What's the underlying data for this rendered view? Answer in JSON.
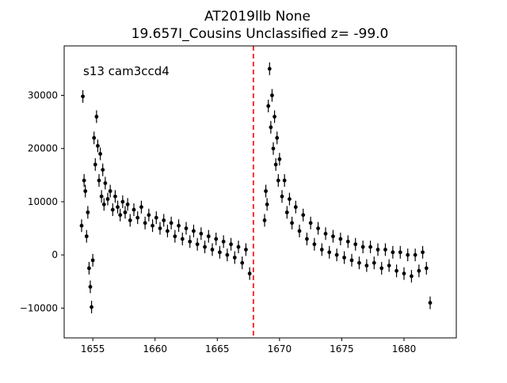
{
  "chart_data": {
    "type": "scatter",
    "title_line1": "AT2019llb  None",
    "title_line2": "19.657I_Cousins Unclassified z= -99.0",
    "annotation": "s13 cam3ccd4",
    "xlabel": "",
    "ylabel": "",
    "xlim": [
      1652.7,
      1684.2
    ],
    "ylim": [
      -15600,
      39300
    ],
    "x_ticks": [
      1655,
      1660,
      1665,
      1670,
      1675,
      1680
    ],
    "y_ticks": [
      -10000,
      0,
      10000,
      20000,
      30000
    ],
    "vline": {
      "x": 1667.9,
      "color": "#ff0000",
      "style": "dashed"
    },
    "marker_color": "#000000",
    "grid": false,
    "series": [
      {
        "points": [
          [
            1654.1,
            5500
          ],
          [
            1654.2,
            29800
          ],
          [
            1654.3,
            14000
          ],
          [
            1654.4,
            12000
          ],
          [
            1654.5,
            3500
          ],
          [
            1654.6,
            8000
          ],
          [
            1654.7,
            -2500
          ],
          [
            1654.8,
            -6000
          ],
          [
            1654.9,
            -9800
          ],
          [
            1655.0,
            -1000
          ],
          [
            1655.1,
            22000
          ],
          [
            1655.2,
            17000
          ],
          [
            1655.3,
            26000
          ],
          [
            1655.4,
            20500
          ],
          [
            1655.5,
            14000
          ],
          [
            1655.6,
            19000
          ],
          [
            1655.7,
            11000
          ],
          [
            1655.8,
            16000
          ],
          [
            1655.9,
            9500
          ],
          [
            1656.0,
            13500
          ],
          [
            1656.2,
            10500
          ],
          [
            1656.4,
            12000
          ],
          [
            1656.6,
            8500
          ],
          [
            1656.8,
            11000
          ],
          [
            1657.0,
            9000
          ],
          [
            1657.2,
            7500
          ],
          [
            1657.4,
            10000
          ],
          [
            1657.6,
            8000
          ],
          [
            1657.8,
            9500
          ],
          [
            1658.0,
            6500
          ],
          [
            1658.3,
            8500
          ],
          [
            1658.6,
            7000
          ],
          [
            1658.9,
            9000
          ],
          [
            1659.2,
            6000
          ],
          [
            1659.5,
            7500
          ],
          [
            1659.8,
            5500
          ],
          [
            1660.1,
            7000
          ],
          [
            1660.4,
            5000
          ],
          [
            1660.7,
            6500
          ],
          [
            1661.0,
            4500
          ],
          [
            1661.3,
            6000
          ],
          [
            1661.6,
            3500
          ],
          [
            1661.9,
            5500
          ],
          [
            1662.2,
            3000
          ],
          [
            1662.5,
            5000
          ],
          [
            1662.8,
            2500
          ],
          [
            1663.1,
            4500
          ],
          [
            1663.4,
            2000
          ],
          [
            1663.7,
            4000
          ],
          [
            1664.0,
            1500
          ],
          [
            1664.3,
            3500
          ],
          [
            1664.6,
            1000
          ],
          [
            1664.9,
            3000
          ],
          [
            1665.2,
            500
          ],
          [
            1665.5,
            2500
          ],
          [
            1665.8,
            0
          ],
          [
            1666.1,
            2000
          ],
          [
            1666.4,
            -500
          ],
          [
            1666.7,
            1500
          ],
          [
            1667.0,
            -1500
          ],
          [
            1667.3,
            1000
          ],
          [
            1667.6,
            -3500
          ],
          [
            1668.8,
            6500
          ],
          [
            1668.9,
            12000
          ],
          [
            1669.0,
            9500
          ],
          [
            1669.1,
            28000
          ],
          [
            1669.2,
            35000
          ],
          [
            1669.3,
            24000
          ],
          [
            1669.4,
            30000
          ],
          [
            1669.5,
            20000
          ],
          [
            1669.6,
            26000
          ],
          [
            1669.7,
            17000
          ],
          [
            1669.8,
            22000
          ],
          [
            1669.9,
            14000
          ],
          [
            1670.0,
            18000
          ],
          [
            1670.2,
            11000
          ],
          [
            1670.4,
            14000
          ],
          [
            1670.6,
            8000
          ],
          [
            1670.8,
            10500
          ],
          [
            1671.0,
            6000
          ],
          [
            1671.3,
            9000
          ],
          [
            1671.6,
            4500
          ],
          [
            1671.9,
            7500
          ],
          [
            1672.2,
            3000
          ],
          [
            1672.5,
            6000
          ],
          [
            1672.8,
            2000
          ],
          [
            1673.1,
            5000
          ],
          [
            1673.4,
            1000
          ],
          [
            1673.7,
            4000
          ],
          [
            1674.0,
            500
          ],
          [
            1674.3,
            3500
          ],
          [
            1674.6,
            0
          ],
          [
            1674.9,
            3000
          ],
          [
            1675.2,
            -500
          ],
          [
            1675.5,
            2500
          ],
          [
            1675.8,
            -1000
          ],
          [
            1676.1,
            2000
          ],
          [
            1676.4,
            -1500
          ],
          [
            1676.7,
            1500
          ],
          [
            1677.0,
            -2000
          ],
          [
            1677.3,
            1500
          ],
          [
            1677.6,
            -1500
          ],
          [
            1677.9,
            1000
          ],
          [
            1678.2,
            -2500
          ],
          [
            1678.5,
            1000
          ],
          [
            1678.8,
            -2000
          ],
          [
            1679.1,
            500
          ],
          [
            1679.4,
            -3000
          ],
          [
            1679.7,
            500
          ],
          [
            1680.0,
            -3500
          ],
          [
            1680.3,
            0
          ],
          [
            1680.6,
            -4000
          ],
          [
            1680.9,
            0
          ],
          [
            1681.2,
            -3000
          ],
          [
            1681.5,
            500
          ],
          [
            1681.8,
            -2500
          ],
          [
            1682.1,
            -9000
          ]
        ]
      }
    ]
  }
}
